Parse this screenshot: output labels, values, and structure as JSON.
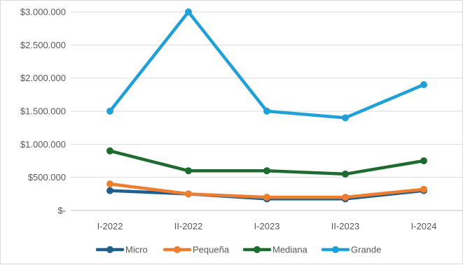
{
  "chart_data": {
    "type": "line",
    "title": "",
    "xlabel": "",
    "ylabel": "",
    "categories": [
      "I-2022",
      "II-2022",
      "I-2023",
      "II-2023",
      "I-2024"
    ],
    "ylim": [
      0,
      3000000
    ],
    "y_ticks": [
      {
        "value": 0,
        "label": "$-"
      },
      {
        "value": 500000,
        "label": "$500.000"
      },
      {
        "value": 1000000,
        "label": "$1.000.000"
      },
      {
        "value": 1500000,
        "label": "$1.500.000"
      },
      {
        "value": 2000000,
        "label": "$2.000.000"
      },
      {
        "value": 2500000,
        "label": "$2.500.000"
      },
      {
        "value": 3000000,
        "label": "$3.000.000"
      }
    ],
    "grid": true,
    "legend_position": "bottom",
    "series": [
      {
        "name": "Micro",
        "color": "#1f5f8b",
        "values": [
          300000,
          250000,
          175000,
          175000,
          300000
        ]
      },
      {
        "name": "Pequeña",
        "color": "#ed7d31",
        "values": [
          400000,
          250000,
          200000,
          200000,
          320000
        ]
      },
      {
        "name": "Mediana",
        "color": "#1e6b2f",
        "values": [
          900000,
          600000,
          600000,
          550000,
          750000
        ]
      },
      {
        "name": "Grande",
        "color": "#1fa0d8",
        "values": [
          1500000,
          3000000,
          1500000,
          1400000,
          1900000
        ]
      }
    ]
  }
}
